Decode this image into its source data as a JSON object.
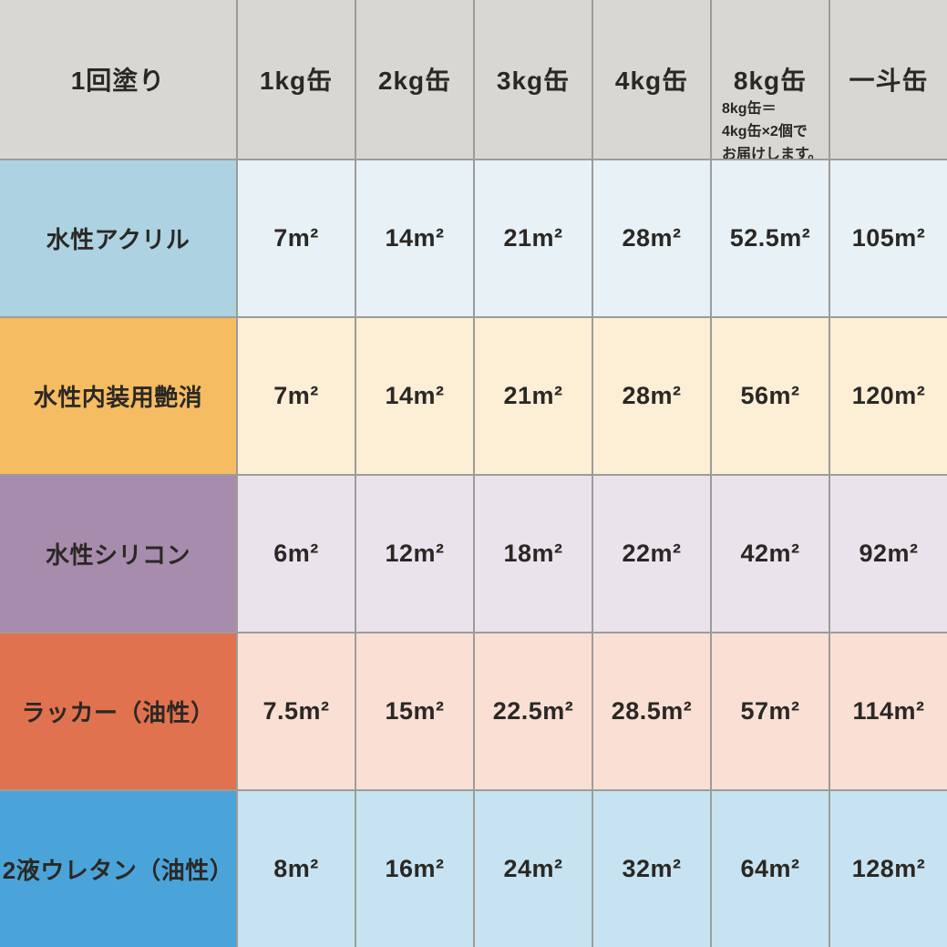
{
  "colors": {
    "header_bg": "#d9d7d2",
    "grid_line": "#9c9c99",
    "text": "#2a2824"
  },
  "table": {
    "header": {
      "col0": "1回塗り",
      "columns": [
        "1kg缶",
        "2kg缶",
        "3kg缶",
        "4kg缶",
        "8kg缶",
        "一斗缶"
      ],
      "note_lines": [
        "8kg缶＝",
        "4kg缶×2個で",
        "お届けします。"
      ]
    },
    "rows": [
      {
        "label": "水性アクリル",
        "label_bg": "#add2e2",
        "cell_bg": "#e8f1f6",
        "values": [
          "7m²",
          "14m²",
          "21m²",
          "28m²",
          "52.5m²",
          "105m²"
        ]
      },
      {
        "label": "水性内装用艶消",
        "label_bg": "#f6bc62",
        "cell_bg": "#fdeed6",
        "values": [
          "7m²",
          "14m²",
          "21m²",
          "28m²",
          "56m²",
          "120m²"
        ]
      },
      {
        "label": "水性シリコン",
        "label_bg": "#a78cae",
        "cell_bg": "#eae3ec",
        "values": [
          "6m²",
          "12m²",
          "18m²",
          "22m²",
          "42m²",
          "92m²"
        ]
      },
      {
        "label": "ラッカー（油性）",
        "label_bg": "#e1724f",
        "cell_bg": "#fadfd5",
        "values": [
          "7.5m²",
          "15m²",
          "22.5m²",
          "28.5m²",
          "57m²",
          "114m²"
        ]
      },
      {
        "label": "2液ウレタン（油性）",
        "label_bg": "#4ba4d9",
        "cell_bg": "#c7e3f1",
        "values": [
          "8m²",
          "16m²",
          "24m²",
          "32m²",
          "64m²",
          "128m²"
        ]
      }
    ]
  },
  "chart_data": {
    "type": "table",
    "columns": [
      "1回塗り",
      "1kg缶",
      "2kg缶",
      "3kg缶",
      "4kg缶",
      "8kg缶",
      "一斗缶"
    ],
    "unit": "㎡",
    "note": "8kg缶＝4kg缶×2個でお届けします。",
    "rows": [
      {
        "label": "水性アクリル",
        "values": [
          7,
          14,
          21,
          28,
          52.5,
          105
        ]
      },
      {
        "label": "水性内装用艶消",
        "values": [
          7,
          14,
          21,
          28,
          56,
          120
        ]
      },
      {
        "label": "水性シリコン",
        "values": [
          6,
          12,
          18,
          22,
          42,
          92
        ]
      },
      {
        "label": "ラッカー（油性）",
        "values": [
          7.5,
          15,
          22.5,
          28.5,
          57,
          114
        ]
      },
      {
        "label": "2液ウレタン（油性）",
        "values": [
          8,
          16,
          24,
          32,
          64,
          128
        ]
      }
    ]
  }
}
